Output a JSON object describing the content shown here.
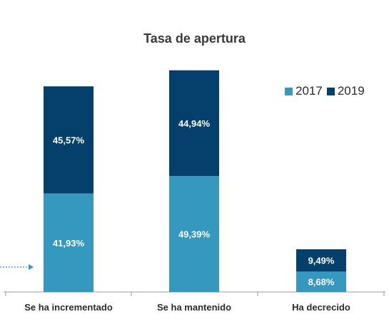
{
  "chart_data": {
    "type": "bar",
    "stacked": true,
    "title": "Tasa de apertura",
    "categories": [
      "Se ha incrementado",
      "Se ha mantenido",
      "Ha decrecido"
    ],
    "series": [
      {
        "name": "2017",
        "color": "#3598bf",
        "values": [
          41.93,
          49.39,
          8.68
        ],
        "labels": [
          "41,93%",
          "49,39%",
          "8,68%"
        ]
      },
      {
        "name": "2019",
        "color": "#053f6b",
        "values": [
          45.57,
          44.94,
          9.49
        ],
        "labels": [
          "45,57%",
          "44,94%",
          "9,49%"
        ]
      }
    ],
    "xlabel": "",
    "ylabel": "",
    "ylim": [
      0,
      100
    ],
    "legend_position": "top-right",
    "grid": false
  }
}
